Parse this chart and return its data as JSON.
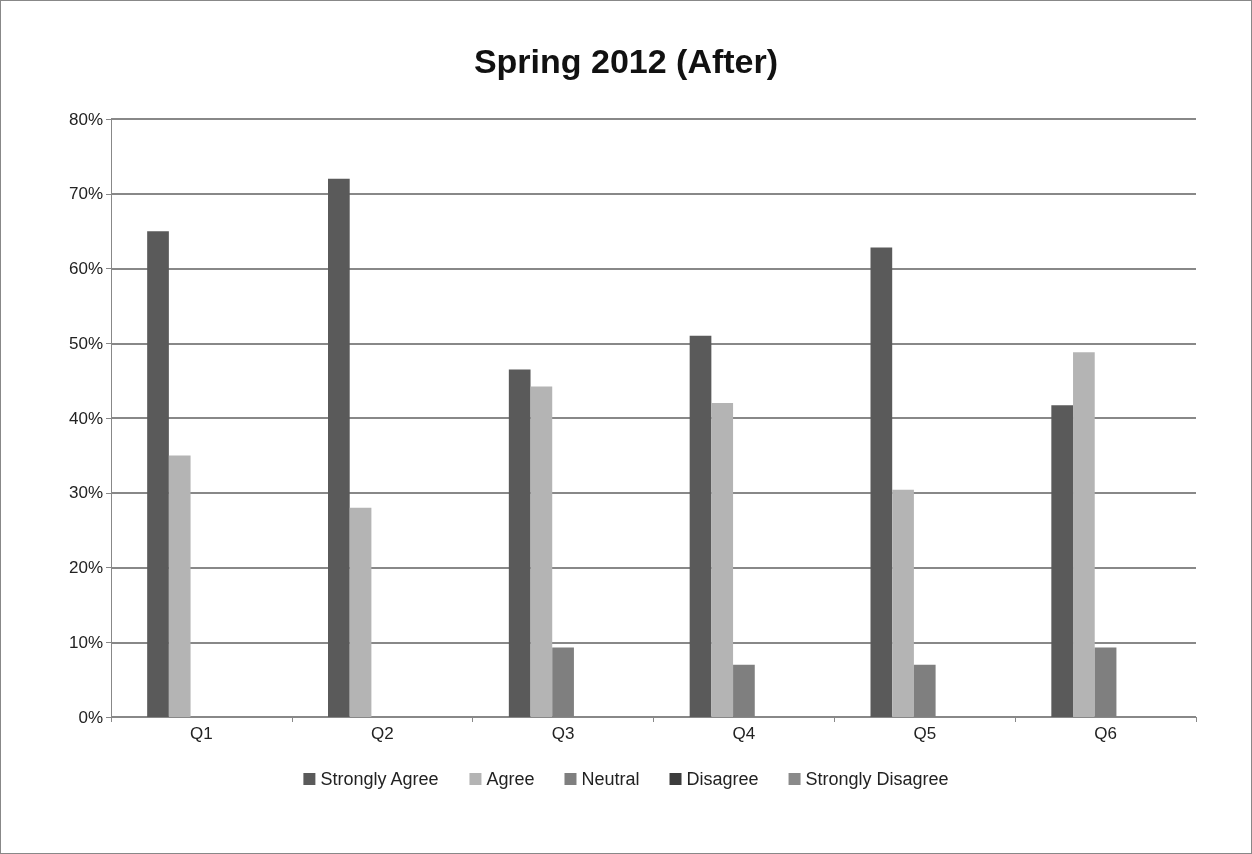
{
  "chart_data": {
    "type": "bar",
    "title": "Spring 2012 (After)",
    "categories": [
      "Q1",
      "Q2",
      "Q3",
      "Q4",
      "Q5",
      "Q6"
    ],
    "series": [
      {
        "name": "Strongly Agree",
        "color": "#5a5a5a",
        "values": [
          65,
          72,
          46.5,
          51,
          62.8,
          41.7
        ]
      },
      {
        "name": "Agree",
        "color": "#b4b4b4",
        "values": [
          35,
          28,
          44.2,
          42,
          30.4,
          48.8
        ]
      },
      {
        "name": "Neutral",
        "color": "#7f7f7f",
        "values": [
          0,
          0,
          9.3,
          7,
          7,
          9.3
        ]
      },
      {
        "name": "Disagree",
        "color": "#3c3c3c",
        "values": [
          0,
          0,
          0,
          0,
          0,
          0
        ]
      },
      {
        "name": "Strongly Disagree",
        "color": "#8a8a8a",
        "values": [
          0,
          0,
          0,
          0,
          0,
          0
        ]
      }
    ],
    "ylim": [
      0,
      80
    ],
    "yticks": [
      {
        "value": 0,
        "label": "0%"
      },
      {
        "value": 10,
        "label": "10%"
      },
      {
        "value": 20,
        "label": "20%"
      },
      {
        "value": 30,
        "label": "30%"
      },
      {
        "value": 40,
        "label": "40%"
      },
      {
        "value": 50,
        "label": "50%"
      },
      {
        "value": 60,
        "label": "60%"
      },
      {
        "value": 70,
        "label": "70%"
      },
      {
        "value": 80,
        "label": "80%"
      }
    ],
    "grid": "y",
    "legend": "bottom"
  }
}
